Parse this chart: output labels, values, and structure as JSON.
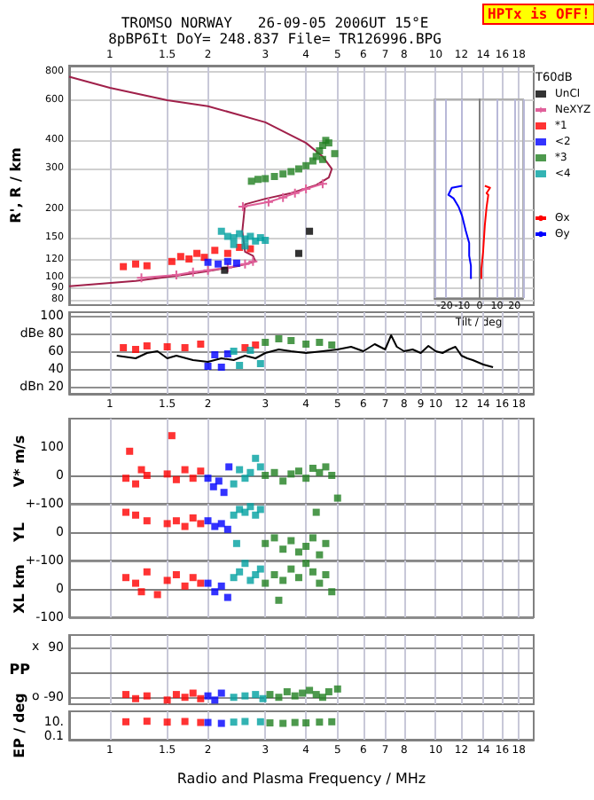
{
  "chart_data": [
    {
      "type": "scatter",
      "title": "TROMSO NORWAY   26-09-05 2006UT 15°E",
      "subtitle": "8pBP6It DoY= 248.837 File= TR126996.BPG",
      "ylabel": "R', R / km",
      "x2label": "Tilt / deg",
      "annotations": [
        "HPTx is OFF!",
        "T60dB"
      ],
      "log": "xy",
      "xlim": [
        0.75,
        20
      ],
      "xticks": [
        1,
        1.5,
        2,
        3,
        4,
        5,
        6,
        7,
        8,
        10,
        12,
        14,
        16,
        18
      ],
      "x2lim": [
        -26,
        25
      ],
      "x2ticks": [
        -20,
        -10,
        0,
        10,
        20
      ],
      "ylim": [
        76,
        850
      ],
      "yticks": [
        80,
        90,
        100,
        120,
        150,
        200,
        300,
        400,
        600,
        800
      ],
      "grid": true,
      "legend": "right",
      "marker": "square",
      "series": [
        {
          "type": "line",
          "marker": "none",
          "color": "#a0204a",
          "x": [
            0.75,
            1.2,
            1.6,
            2.0,
            2.5,
            2.8,
            2.75,
            2.6,
            2.55,
            2.6,
            3.0,
            3.6,
            4.3,
            4.7,
            4.8,
            4.5,
            4.0,
            3.0,
            2.0,
            1.5,
            1.0,
            0.75
          ],
          "values": [
            92,
            97,
            102,
            107,
            113,
            118,
            125,
            130,
            160,
            210,
            222,
            235,
            255,
            275,
            300,
            340,
            390,
            480,
            565,
            600,
            680,
            760
          ]
        },
        {
          "name": "UnCl",
          "color": "#000000",
          "x": [
            2.25,
            4.1,
            3.8
          ],
          "values": [
            108,
            160,
            128
          ]
        },
        {
          "name": "NeXYZ",
          "type": "line",
          "marker": "cross",
          "color": "#e0609a",
          "x": [
            1.25,
            1.6,
            1.8,
            2.0,
            2.3,
            2.6,
            2.75,
            2.7,
            2.56,
            3.07,
            3.4,
            3.7,
            4.0,
            4.5
          ],
          "values": [
            100,
            103,
            106,
            108,
            111,
            115,
            118,
            null,
            205,
            215,
            225,
            235,
            245,
            258
          ]
        },
        {
          "name": "*1",
          "color": "#ff0000",
          "x": [
            1.1,
            1.2,
            1.3,
            1.55,
            1.65,
            1.75,
            1.85,
            1.95,
            2.1,
            2.3,
            2.5,
            2.7
          ],
          "values": [
            112,
            115,
            113,
            118,
            124,
            121,
            128,
            123,
            132,
            128,
            136,
            134
          ]
        },
        {
          "name": "<2",
          "color": "#0000ff",
          "x": [
            2.0,
            2.15,
            2.3,
            2.45
          ],
          "values": [
            117,
            115,
            118,
            116
          ]
        },
        {
          "name": "*3",
          "color": "#208020",
          "x": [
            2.72,
            2.85,
            3.0,
            3.2,
            3.4,
            3.6,
            3.8,
            4.0,
            4.2,
            4.3,
            4.4,
            4.5,
            4.6,
            4.7,
            4.9,
            4.5
          ],
          "values": [
            265,
            270,
            272,
            278,
            285,
            292,
            300,
            310,
            325,
            340,
            360,
            380,
            400,
            390,
            350,
            330
          ]
        },
        {
          "name": "<4",
          "color": "#00a0a0",
          "x": [
            2.2,
            2.3,
            2.4,
            2.5,
            2.6,
            2.7,
            2.8,
            2.9,
            3.0,
            2.4,
            2.6
          ],
          "values": [
            160,
            152,
            150,
            156,
            148,
            152,
            145,
            150,
            146,
            140,
            138
          ]
        },
        {
          "name": "Θx",
          "type": "line",
          "axis": "x2",
          "marker": "none",
          "color": "#ff0000",
          "x": [
            3,
            6,
            4,
            5,
            4,
            3,
            2,
            1,
            1
          ],
          "values": [
            253,
            248,
            235,
            231,
            204,
            170,
            130,
            109,
            99
          ]
        },
        {
          "name": "Θy",
          "type": "line",
          "axis": "x2",
          "marker": "none",
          "color": "#0000ff",
          "x": [
            -10,
            -16,
            -18,
            -15,
            -12,
            -10,
            -8,
            -6,
            -6,
            -5,
            -5
          ],
          "values": [
            253,
            248,
            231,
            223,
            204,
            186,
            161,
            142,
            125,
            113,
            99
          ]
        }
      ]
    },
    {
      "type": "scatter",
      "log": "x",
      "xlim": [
        0.75,
        20
      ],
      "xticks": [
        1,
        1.5,
        2,
        3,
        4,
        5,
        6,
        7,
        8,
        9,
        10,
        12,
        14,
        16,
        18
      ],
      "ylim": [
        12,
        104
      ],
      "yticks": [
        {
          "value": 20,
          "label": "dBn 20"
        },
        40,
        60,
        {
          "value": 80,
          "label": "dBe 80"
        },
        100
      ],
      "grid": true,
      "marker": "square",
      "series": [
        {
          "type": "line",
          "marker": "none",
          "color": "#000000",
          "x": [
            1.05,
            1.2,
            1.3,
            1.4,
            1.5,
            1.6,
            1.8,
            2.0,
            2.2,
            2.4,
            2.6,
            2.8,
            3.0,
            3.3,
            3.6,
            4.0,
            4.5,
            5.0,
            5.5,
            6.0,
            6.5,
            7.0,
            7.3,
            7.6,
            8.0,
            8.5,
            9.0,
            9.5,
            10,
            10.5,
            11,
            11.5,
            12,
            12.5,
            13,
            14,
            15
          ],
          "values": [
            55,
            52,
            58,
            60,
            52,
            55,
            50,
            48,
            52,
            50,
            55,
            52,
            58,
            62,
            60,
            58,
            60,
            62,
            65,
            60,
            68,
            62,
            78,
            65,
            60,
            62,
            58,
            66,
            60,
            58,
            62,
            65,
            55,
            52,
            50,
            45,
            42
          ]
        },
        {
          "color": "#ff0000",
          "x": [
            1.1,
            1.2,
            1.3,
            1.5,
            1.7,
            1.9,
            2.6,
            2.8
          ],
          "values": [
            64,
            62,
            66,
            65,
            64,
            68,
            64,
            67
          ]
        },
        {
          "color": "#0000ff",
          "x": [
            2.0,
            2.1,
            2.2,
            2.3
          ],
          "values": [
            43,
            56,
            42,
            57
          ]
        },
        {
          "color": "#208020",
          "x": [
            3.0,
            3.3,
            3.6,
            4.0,
            4.4,
            4.8
          ],
          "values": [
            70,
            74,
            72,
            68,
            70,
            67
          ]
        },
        {
          "color": "#00a0a0",
          "x": [
            2.4,
            2.5,
            2.7,
            2.9
          ],
          "values": [
            60,
            44,
            61,
            46
          ]
        }
      ]
    },
    {
      "type": "scatter",
      "ylabel": "V* m/s",
      "log": "x",
      "xlim": [
        0.75,
        20
      ],
      "xticks": [
        1,
        1.5,
        2,
        3,
        4,
        5,
        6,
        7,
        8,
        10,
        12,
        14,
        16,
        18
      ],
      "ylim": [
        -100,
        200
      ],
      "yticks": [
        {
          "value": -100,
          "label": "+-100"
        },
        0,
        100
      ],
      "tick_labels": "y",
      "grid": "x",
      "marker": "square",
      "series": [
        {
          "color": "#ff0000",
          "x": [
            1.12,
            1.2,
            1.3,
            1.5,
            1.6,
            1.7,
            1.8,
            1.9,
            1.15,
            1.55,
            1.25
          ],
          "values": [
            -10,
            -30,
            0,
            5,
            -15,
            20,
            -10,
            15,
            85,
            140,
            20
          ]
        },
        {
          "color": "#0000ff",
          "x": [
            2.0,
            2.08,
            2.16,
            2.24,
            2.32
          ],
          "values": [
            -10,
            -40,
            -20,
            -60,
            30
          ]
        },
        {
          "color": "#00a0a0",
          "x": [
            2.4,
            2.5,
            2.6,
            2.7,
            2.8,
            2.9
          ],
          "values": [
            -30,
            20,
            -10,
            10,
            60,
            30
          ]
        },
        {
          "color": "#208020",
          "x": [
            3.0,
            3.2,
            3.4,
            3.6,
            3.8,
            4.0,
            4.2,
            4.4,
            4.6,
            4.8,
            5.0
          ],
          "values": [
            0,
            10,
            -20,
            5,
            15,
            -10,
            25,
            10,
            30,
            0,
            -80
          ]
        }
      ]
    },
    {
      "type": "scatter",
      "ylabel": "YL",
      "log": "x",
      "xlim": [
        0.75,
        20
      ],
      "xticks": [
        1,
        1.5,
        2,
        3,
        4,
        5,
        6,
        7,
        8,
        10,
        12,
        14,
        16,
        18
      ],
      "ylim": [
        -100,
        100
      ],
      "yticks": [
        {
          "value": -100,
          "label": "+-100"
        },
        0,
        {
          "value": 100,
          "label": null
        }
      ],
      "tick_labels": "y",
      "grid": true,
      "marker": "square",
      "series": [
        {
          "color": "#ff0000",
          "x": [
            1.12,
            1.2,
            1.3,
            1.5,
            1.6,
            1.7,
            1.8,
            1.9
          ],
          "values": [
            70,
            60,
            40,
            30,
            40,
            20,
            50,
            30
          ]
        },
        {
          "color": "#0000ff",
          "x": [
            2.0,
            2.1,
            2.2,
            2.3
          ],
          "values": [
            40,
            20,
            30,
            10
          ]
        },
        {
          "color": "#00a0a0",
          "x": [
            2.4,
            2.5,
            2.6,
            2.7,
            2.8,
            2.9,
            2.45
          ],
          "values": [
            60,
            80,
            70,
            90,
            60,
            80,
            -40
          ]
        },
        {
          "color": "#208020",
          "x": [
            3.0,
            3.2,
            3.4,
            3.6,
            3.8,
            4.0,
            4.2,
            4.4,
            4.6,
            4.3
          ],
          "values": [
            -40,
            -20,
            -60,
            -30,
            -70,
            -50,
            -20,
            -80,
            -40,
            70
          ]
        }
      ]
    },
    {
      "type": "scatter",
      "ylabel": "XL km",
      "log": "x",
      "xlim": [
        0.75,
        20
      ],
      "xticks": [
        1,
        1.5,
        2,
        3,
        4,
        5,
        6,
        7,
        8,
        10,
        12,
        14,
        16,
        18
      ],
      "ylim": [
        -100,
        100
      ],
      "yticks": [
        -100,
        0,
        {
          "value": 100,
          "label": null
        }
      ],
      "tick_labels": "y",
      "grid": true,
      "marker": "square",
      "series": [
        {
          "color": "#ff0000",
          "x": [
            1.12,
            1.2,
            1.3,
            1.4,
            1.5,
            1.6,
            1.7,
            1.8,
            1.9,
            1.25
          ],
          "values": [
            40,
            20,
            60,
            -20,
            30,
            50,
            10,
            40,
            20,
            -10
          ]
        },
        {
          "color": "#0000ff",
          "x": [
            2.0,
            2.1,
            2.2,
            2.3
          ],
          "values": [
            20,
            -10,
            10,
            -30
          ]
        },
        {
          "color": "#00a0a0",
          "x": [
            2.4,
            2.5,
            2.6,
            2.7,
            2.8,
            2.9
          ],
          "values": [
            40,
            60,
            90,
            30,
            50,
            70
          ]
        },
        {
          "color": "#208020",
          "x": [
            3.0,
            3.2,
            3.4,
            3.6,
            3.8,
            4.0,
            4.2,
            4.4,
            4.6,
            4.8,
            3.3
          ],
          "values": [
            20,
            50,
            30,
            70,
            40,
            90,
            60,
            20,
            50,
            -10,
            -40
          ]
        }
      ]
    },
    {
      "type": "scatter",
      "ylabel": "PP",
      "annotations": [
        "x",
        "o"
      ],
      "log": "x",
      "xlim": [
        0.75,
        20
      ],
      "xticks": [
        1,
        1.5,
        2,
        3,
        4,
        5,
        6,
        7,
        8,
        10,
        12,
        14,
        16,
        18
      ],
      "ylim": [
        -115,
        135
      ],
      "yticks": [
        -90,
        90
      ],
      "tick_labels": "y",
      "grid": true,
      "marker": "square",
      "series": [
        {
          "color": "#ff0000",
          "x": [
            1.12,
            1.2,
            1.3,
            1.5,
            1.6,
            1.7,
            1.8,
            1.9
          ],
          "values": [
            -80,
            -95,
            -85,
            -100,
            -80,
            -90,
            -75,
            -95
          ]
        },
        {
          "color": "#0000ff",
          "x": [
            2.0,
            2.1,
            2.2
          ],
          "values": [
            -85,
            -100,
            -75
          ]
        },
        {
          "color": "#00a0a0",
          "x": [
            2.4,
            2.6,
            2.8,
            2.95
          ],
          "values": [
            -90,
            -85,
            -80,
            -95
          ]
        },
        {
          "color": "#208020",
          "x": [
            3.1,
            3.3,
            3.5,
            3.7,
            3.9,
            4.1,
            4.3,
            4.5,
            4.7,
            5.0
          ],
          "values": [
            -80,
            -90,
            -70,
            -85,
            -75,
            -65,
            -80,
            -90,
            -70,
            -60
          ]
        }
      ]
    },
    {
      "type": "scatter",
      "ylabel": "EP / deg",
      "xlabel": "Radio and Plasma Frequency / MHz",
      "log": "xy",
      "xlim": [
        0.75,
        20
      ],
      "xticks": [
        1,
        1.5,
        2,
        3,
        4,
        5,
        6,
        7,
        8,
        10,
        12,
        14,
        16,
        18
      ],
      "ylim": [
        0.03,
        300
      ],
      "yticks": [
        {
          "value": 0.1,
          "label": "0.1"
        },
        {
          "value": 10,
          "label": "10."
        }
      ],
      "grid": "x",
      "marker": "square",
      "series": [
        {
          "color": "#ff0000",
          "x": [
            1.12,
            1.3,
            1.5,
            1.7,
            1.9
          ],
          "values": [
            10,
            12,
            9,
            11,
            8
          ]
        },
        {
          "color": "#0000ff",
          "x": [
            2.0,
            2.2
          ],
          "values": [
            8,
            6
          ]
        },
        {
          "color": "#00a0a0",
          "x": [
            2.4,
            2.6,
            2.9
          ],
          "values": [
            9,
            11,
            10
          ]
        },
        {
          "color": "#208020",
          "x": [
            3.1,
            3.4,
            3.7,
            4.0,
            4.4,
            4.8
          ],
          "values": [
            7,
            6,
            8,
            7,
            9,
            10
          ]
        }
      ]
    }
  ]
}
